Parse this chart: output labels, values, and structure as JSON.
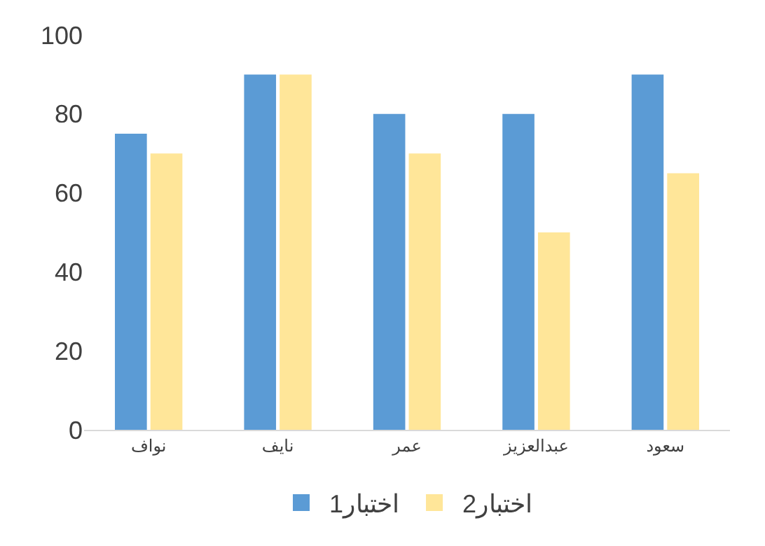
{
  "chart_data": {
    "type": "bar",
    "categories": [
      "نواف",
      "نايف",
      "عمر",
      "عبدالعزيز",
      "سعود"
    ],
    "series": [
      {
        "name": "اختبار1",
        "color": "#5b9bd5",
        "values": [
          75,
          90,
          80,
          80,
          90
        ]
      },
      {
        "name": "اختبار2",
        "color": "#ffe699",
        "values": [
          70,
          90,
          70,
          50,
          65
        ]
      }
    ],
    "ylim": [
      0,
      100
    ],
    "yticks": [
      0,
      20,
      40,
      60,
      80,
      100
    ],
    "grid": false,
    "legend": "bottom"
  }
}
